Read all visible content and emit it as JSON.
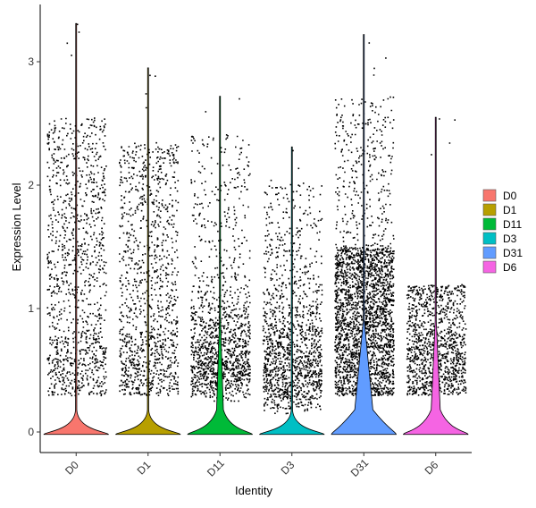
{
  "chart_data": {
    "type": "violin",
    "xlabel": "Identity",
    "ylabel": "Expression Level",
    "ylim": [
      -0.18,
      3.45
    ],
    "yticks": [
      0,
      1,
      2,
      3
    ],
    "categories": [
      "D0",
      "D1",
      "D11",
      "D3",
      "D31",
      "D6"
    ],
    "colors": [
      "#F8766D",
      "#B79F00",
      "#00BA38",
      "#00BFC4",
      "#619CFF",
      "#F564E3"
    ],
    "legend": {
      "position": "right",
      "entries": [
        "D0",
        "D1",
        "D11",
        "D3",
        "D31",
        "D6"
      ]
    },
    "grid": false,
    "series": [
      {
        "name": "D0",
        "max": 3.31,
        "bulge_width": 0.0,
        "points_pattern": "uniform",
        "dense_range": [
          0.3,
          2.55
        ]
      },
      {
        "name": "D1",
        "max": 2.95,
        "bulge_width": 0.0,
        "points_pattern": "uniform",
        "dense_range": [
          0.3,
          2.35
        ]
      },
      {
        "name": "D11",
        "max": 2.72,
        "bulge_width": 0.3,
        "points_pattern": "dense-low",
        "dense_range": [
          0.25,
          1.0
        ]
      },
      {
        "name": "D3",
        "max": 2.31,
        "bulge_width": 0.0,
        "points_pattern": "dense-low",
        "dense_range": [
          0.15,
          1.1
        ]
      },
      {
        "name": "D31",
        "max": 3.22,
        "bulge_width": 0.8,
        "points_pattern": "dense-mid",
        "dense_range": [
          0.3,
          1.5
        ]
      },
      {
        "name": "D6",
        "max": 2.55,
        "bulge_width": 0.4,
        "points_pattern": "uniform",
        "dense_range": [
          0.3,
          1.2
        ]
      }
    ]
  }
}
